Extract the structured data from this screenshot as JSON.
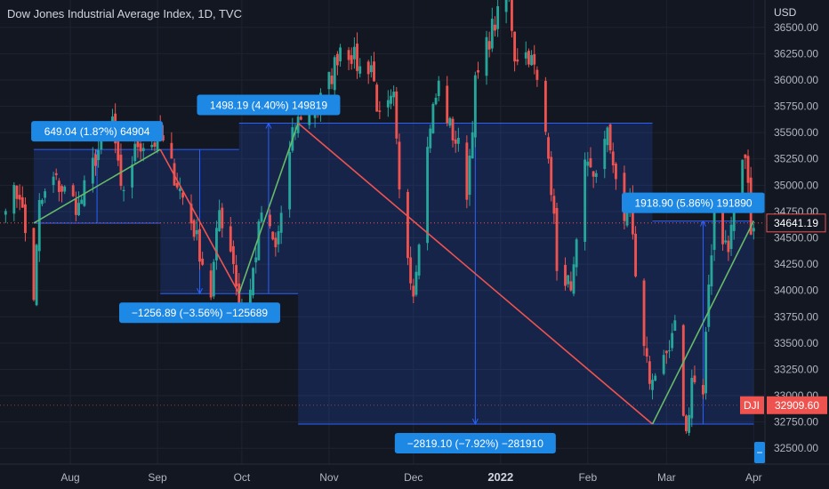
{
  "header": {
    "title": "Dow Jones Industrial Average Index, 1D, TVC",
    "currency": "USD"
  },
  "colors": {
    "background": "#131722",
    "up": "#26a69a",
    "down": "#ef5350",
    "measure_fill": "#2962ff",
    "measure_line": "#2962ff",
    "label_bg": "#1e88e5",
    "grid": "#1f2330",
    "last_price_tag": "#ef5350",
    "dji_tag": "#ef5350"
  },
  "chart_data": {
    "type": "candlestick",
    "title": "Dow Jones Industrial Average Index, 1D, TVC",
    "y_axis": {
      "ticks": [
        32500,
        32750,
        33000,
        33250,
        33500,
        33750,
        34000,
        34250,
        34500,
        34750,
        35000,
        35250,
        35500,
        35750,
        36000,
        36250,
        36500
      ],
      "range": [
        32350,
        36760
      ]
    },
    "x_axis": {
      "labels": [
        {
          "label": "Aug",
          "date": "2021-08-01"
        },
        {
          "label": "Sep",
          "date": "2021-09-01"
        },
        {
          "label": "Oct",
          "date": "2021-10-01"
        },
        {
          "label": "Nov",
          "date": "2021-11-01"
        },
        {
          "label": "Dec",
          "date": "2021-12-01"
        },
        {
          "label": "2022",
          "date": "2022-01-01",
          "bold": true
        },
        {
          "label": "Feb",
          "date": "2022-02-01"
        },
        {
          "label": "Mar",
          "date": "2022-03-01"
        },
        {
          "label": "Apr",
          "date": "2022-04-01"
        }
      ],
      "range": [
        "2021-07-07",
        "2022-04-05"
      ]
    },
    "grid": true,
    "price_path": [
      [
        "2021-07-09",
        34870
      ],
      [
        "2021-07-14",
        34930
      ],
      [
        "2021-07-19",
        33950
      ],
      [
        "2021-07-21",
        34800
      ],
      [
        "2021-07-26",
        35050
      ],
      [
        "2021-07-30",
        34940
      ],
      [
        "2021-08-04",
        34790
      ],
      [
        "2021-08-10",
        35270
      ],
      [
        "2021-08-16",
        35620
      ],
      [
        "2021-08-19",
        34900
      ],
      [
        "2021-08-25",
        35400
      ],
      [
        "2021-08-30",
        35400
      ],
      [
        "2021-09-02",
        35440
      ],
      [
        "2021-09-08",
        35030
      ],
      [
        "2021-09-14",
        34580
      ],
      [
        "2021-09-20",
        33970
      ],
      [
        "2021-09-23",
        34760
      ],
      [
        "2021-09-28",
        34300
      ],
      [
        "2021-09-30",
        33840
      ],
      [
        "2021-10-04",
        34000
      ],
      [
        "2021-10-08",
        34750
      ],
      [
        "2021-10-13",
        34380
      ],
      [
        "2021-10-19",
        35450
      ],
      [
        "2021-10-22",
        35680
      ],
      [
        "2021-10-28",
        35750
      ],
      [
        "2021-11-02",
        36050
      ],
      [
        "2021-11-05",
        36330
      ],
      [
        "2021-11-09",
        36250
      ],
      [
        "2021-11-12",
        36100
      ],
      [
        "2021-11-16",
        36150
      ],
      [
        "2021-11-19",
        35600
      ],
      [
        "2021-11-24",
        35800
      ],
      [
        "2021-11-26",
        34900
      ],
      [
        "2021-12-01",
        34000
      ],
      [
        "2021-12-03",
        34550
      ],
      [
        "2021-12-07",
        35600
      ],
      [
        "2021-12-10",
        35950
      ],
      [
        "2021-12-14",
        35550
      ],
      [
        "2021-12-17",
        35360
      ],
      [
        "2021-12-20",
        34950
      ],
      [
        "2021-12-23",
        35950
      ],
      [
        "2021-12-29",
        36490
      ],
      [
        "2022-01-04",
        36800
      ],
      [
        "2022-01-06",
        36240
      ],
      [
        "2022-01-11",
        36250
      ],
      [
        "2022-01-13",
        36100
      ],
      [
        "2022-01-18",
        35360
      ],
      [
        "2022-01-21",
        34270
      ],
      [
        "2022-01-24",
        34000
      ],
      [
        "2022-01-27",
        34160
      ],
      [
        "2022-01-31",
        35130
      ],
      [
        "2022-02-03",
        35100
      ],
      [
        "2022-02-08",
        35460
      ],
      [
        "2022-02-10",
        35250
      ],
      [
        "2022-02-14",
        34570
      ],
      [
        "2022-02-16",
        34930
      ],
      [
        "2022-02-18",
        34080
      ],
      [
        "2022-02-23",
        33130
      ],
      [
        "2022-02-24",
        33220
      ],
      [
        "2022-03-01",
        33290
      ],
      [
        "2022-03-04",
        33620
      ],
      [
        "2022-03-08",
        32630
      ],
      [
        "2022-03-10",
        33170
      ],
      [
        "2022-03-14",
        32950
      ],
      [
        "2022-03-16",
        34060
      ],
      [
        "2022-03-18",
        34750
      ],
      [
        "2022-03-23",
        34360
      ],
      [
        "2022-03-25",
        34860
      ],
      [
        "2022-03-29",
        35290
      ],
      [
        "2022-03-31",
        34640
      ],
      [
        "2022-04-01",
        34640
      ]
    ],
    "measurements": [
      {
        "start": [
          "2021-07-19",
          34640
        ],
        "end": [
          "2021-09-02",
          35340
        ],
        "label": "649.04 (1.8?%) 64904",
        "direction": "up"
      },
      {
        "start": [
          "2021-09-02",
          35340
        ],
        "end": [
          "2021-09-30",
          33970
        ],
        "label": "−1256.89 (−3.56%) −125689",
        "direction": "down"
      },
      {
        "start": [
          "2021-09-30",
          33970
        ],
        "end": [
          "2021-10-21",
          35590
        ],
        "label": "1498.19 (4.40%) 149819",
        "direction": "up"
      },
      {
        "start": [
          "2021-10-21",
          35590
        ],
        "end": [
          "2022-02-24",
          32730
        ],
        "label": "−2819.10 (−7.92%) −281910",
        "direction": "down"
      },
      {
        "start": [
          "2022-02-24",
          32730
        ],
        "end": [
          "2022-04-01",
          34660
        ],
        "label": "1918.90 (5.86%) 191890",
        "direction": "up"
      }
    ],
    "last_price": {
      "value": "34641.19",
      "price": 34641.19
    },
    "symbol_tag": {
      "symbol": "DJI",
      "value": "32909.60",
      "price": 32909.6
    },
    "edge_label": "−"
  }
}
